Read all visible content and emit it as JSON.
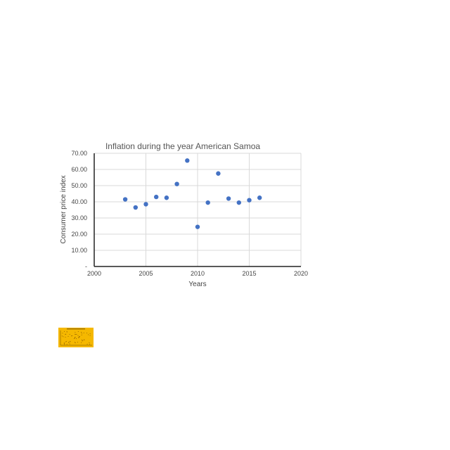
{
  "chart_data": {
    "type": "scatter",
    "title": "Inflation during the year American Samoa",
    "xlabel": "Years",
    "ylabel": "Consumer price index",
    "xlim": [
      2000,
      2020
    ],
    "ylim": [
      0,
      70
    ],
    "x_ticks": [
      2000,
      2005,
      2010,
      2015,
      2020
    ],
    "x_tick_labels": [
      "2000",
      "2005",
      "2010",
      "2015",
      "2020"
    ],
    "y_ticks": [
      0,
      10,
      20,
      30,
      40,
      50,
      60,
      70
    ],
    "y_tick_labels": [
      "-",
      "10.00",
      "20.00",
      "30.00",
      "40.00",
      "50.00",
      "60.00",
      "70.00"
    ],
    "grid": true,
    "legend": "none",
    "marker_color": "#4472c4",
    "series": [
      {
        "x": [
          2003,
          2004,
          2005,
          2006,
          2007,
          2008,
          2009,
          2010,
          2011,
          2012,
          2013,
          2014,
          2015,
          2016
        ],
        "y": [
          41.5,
          36.5,
          38.5,
          43,
          42.5,
          51,
          65.5,
          24.5,
          39.5,
          57.5,
          42,
          39.5,
          41,
          42.5
        ]
      }
    ]
  },
  "thumbnail": {
    "background_color": "#f5b800",
    "dot_color": "#8a5a00"
  }
}
